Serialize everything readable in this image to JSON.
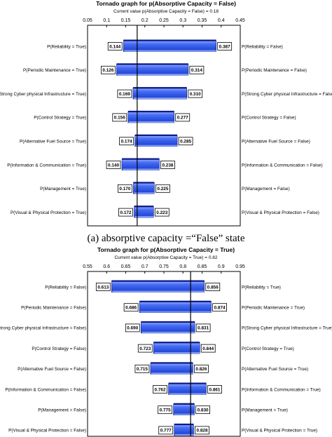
{
  "chart_data": [
    {
      "type": "tornado",
      "title": "Tornado graph for p(Absorptive Capacity = False)",
      "subtitle": "Current value p(Absorptive Capacity = False) = 0.18",
      "current_value": 0.18,
      "xlim": [
        0.05,
        0.45
      ],
      "ticks": [
        "0.05",
        "0.1",
        "0.15",
        "0.2",
        "0.25",
        "0.3",
        "0.35",
        "0.4",
        "0.45"
      ],
      "rows": [
        {
          "left_label": "P(Reliability = True)",
          "right_label": "P(Reliability = False)",
          "low": 0.144,
          "high": 0.387,
          "low_text": "0.144",
          "high_text": "0.387"
        },
        {
          "left_label": "P(Periodic Maintenance = True)",
          "right_label": "P(Periodic Maintenance = False)",
          "low": 0.126,
          "high": 0.314,
          "low_text": "0.126",
          "high_text": "0.314"
        },
        {
          "left_label": "P(Strong Cyber physical Infrastructure = True)",
          "right_label": "P(Strong Cyber physical Infrastructure = False)",
          "low": 0.169,
          "high": 0.31,
          "low_text": "0.169",
          "high_text": "0.310"
        },
        {
          "left_label": "P(Control Strategy = True)",
          "right_label": "P(Control Strategy = False)",
          "low": 0.156,
          "high": 0.277,
          "low_text": "0.156",
          "high_text": "0.277"
        },
        {
          "left_label": "P(Alternative Fuel Source = True)",
          "right_label": "P(Alternative Fuel Source = False)",
          "low": 0.174,
          "high": 0.285,
          "low_text": "0.174",
          "high_text": "0.285"
        },
        {
          "left_label": "P(Information & Communication = True)",
          "right_label": "P(Information & Communication = False)",
          "low": 0.14,
          "high": 0.238,
          "low_text": "0.140",
          "high_text": "0.238"
        },
        {
          "left_label": "P(Management = True)",
          "right_label": "P(Management = False)",
          "low": 0.17,
          "high": 0.225,
          "low_text": "0.170",
          "high_text": "0.225"
        },
        {
          "left_label": "P(Visual & Physical Protection = True)",
          "right_label": "P(Visual & Physical Protection = False)",
          "low": 0.172,
          "high": 0.223,
          "low_text": "0.172",
          "high_text": "0.223"
        }
      ]
    },
    {
      "type": "tornado",
      "title": "Tornado graph for p(Absorptive Capacity = True)",
      "subtitle": "Current value p(Absorptive Capacity = True) = 0.82",
      "current_value": 0.82,
      "xlim": [
        0.55,
        0.95
      ],
      "ticks": [
        "0.55",
        "0.6",
        "0.65",
        "0.7",
        "0.75",
        "0.8",
        "0.85",
        "0.9",
        "0.95"
      ],
      "rows": [
        {
          "left_label": "P(Reliability = False)",
          "right_label": "P(Reliability = True)",
          "low": 0.613,
          "high": 0.856,
          "low_text": "0.613",
          "high_text": "0.856"
        },
        {
          "left_label": "P(Periodic Maintenance = False)",
          "right_label": "P(Periodic Maintenance = True)",
          "low": 0.686,
          "high": 0.874,
          "low_text": "0.686",
          "high_text": "0.874"
        },
        {
          "left_label": "P(Strong Cyber physical Infrastructure = False)",
          "right_label": "P(Strong Cyber physical Infrastructure = True)",
          "low": 0.69,
          "high": 0.831,
          "low_text": "0.690",
          "high_text": "0.831"
        },
        {
          "left_label": "P(Control Strategy = False)",
          "right_label": "P(Control Strategy = True)",
          "low": 0.723,
          "high": 0.844,
          "low_text": "0.723",
          "high_text": "0.844"
        },
        {
          "left_label": "P(Alternative Fuel Source = False)",
          "right_label": "P(Alternative Fuel Source = True)",
          "low": 0.715,
          "high": 0.826,
          "low_text": "0.715",
          "high_text": "0.826"
        },
        {
          "left_label": "P(Information & Communication = False)",
          "right_label": "P(Information & Communication = True)",
          "low": 0.762,
          "high": 0.861,
          "low_text": "0.762",
          "high_text": "0.861"
        },
        {
          "left_label": "P(Management = False)",
          "right_label": "P(Management = True)",
          "low": 0.775,
          "high": 0.83,
          "low_text": "0.775",
          "high_text": "0.830"
        },
        {
          "left_label": "P(Visual & Physical Protection = False)",
          "right_label": "P(Visual & Physical Protection = True)",
          "low": 0.777,
          "high": 0.828,
          "low_text": "0.777",
          "high_text": "0.828"
        }
      ]
    }
  ],
  "caption": "(a) absorptive capacity =“False” state",
  "colors": {
    "bar_fill": "#2f57e6",
    "bar_edge": "#0c1c8a",
    "bar_highlight": "#8fa6ff",
    "current_line": "#000000",
    "frame": "#000000"
  }
}
